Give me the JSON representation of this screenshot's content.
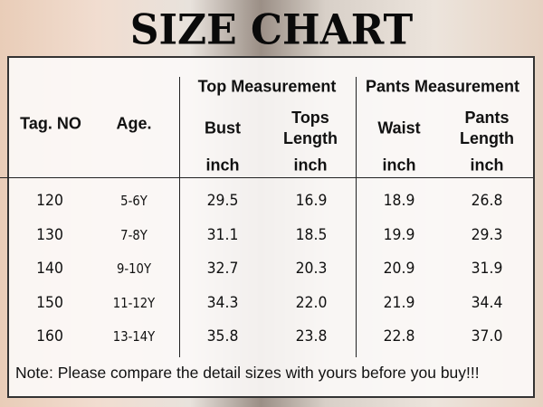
{
  "title": "SIZE CHART",
  "headers": {
    "tag": "Tag. NO",
    "age": "Age.",
    "top_group": "Top Measurement",
    "pants_group": "Pants Measurement",
    "bust": "Bust",
    "tops_length": [
      "Tops",
      "Length"
    ],
    "waist": "Waist",
    "pants_length": [
      "Pants",
      "Length"
    ],
    "unit": "inch"
  },
  "rows": [
    {
      "tag": "120",
      "age": "5-6Y",
      "bust": "29.5",
      "tops_length": "16.9",
      "waist": "18.9",
      "pants_length": "26.8"
    },
    {
      "tag": "130",
      "age": "7-8Y",
      "bust": "31.1",
      "tops_length": "18.5",
      "waist": "19.9",
      "pants_length": "29.3"
    },
    {
      "tag": "140",
      "age": "9-10Y",
      "bust": "32.7",
      "tops_length": "20.3",
      "waist": "20.9",
      "pants_length": "31.9"
    },
    {
      "tag": "150",
      "age": "11-12Y",
      "bust": "34.3",
      "tops_length": "22.0",
      "waist": "21.9",
      "pants_length": "34.4"
    },
    {
      "tag": "160",
      "age": "13-14Y",
      "bust": "35.8",
      "tops_length": "23.8",
      "waist": "22.8",
      "pants_length": "37.0"
    }
  ],
  "note": "Note: Please compare the detail sizes with yours before you buy!!!"
}
